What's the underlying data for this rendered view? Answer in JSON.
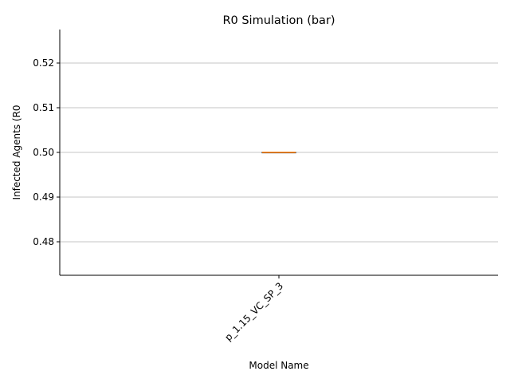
{
  "chart_data": {
    "type": "box",
    "title": "R0 Simulation (bar)",
    "xlabel": "Model Name",
    "ylabel": "Infected Agents (R0",
    "categories": [
      "p_1.15_VC_SP_3"
    ],
    "series": [
      {
        "values": [
          0.5
        ],
        "min": 0.5,
        "q1": 0.5,
        "median": 0.5,
        "q3": 0.5,
        "max": 0.5
      }
    ],
    "ylim": [
      0.4725,
      0.5275
    ],
    "yticks": [
      0.48,
      0.49,
      0.5,
      0.51,
      0.52
    ],
    "ytick_labels": [
      "0.48",
      "0.49",
      "0.50",
      "0.51",
      "0.52"
    ],
    "grid": "y-major",
    "colors": {
      "box": "#1f77b4",
      "median": "#ff7f0e"
    }
  }
}
